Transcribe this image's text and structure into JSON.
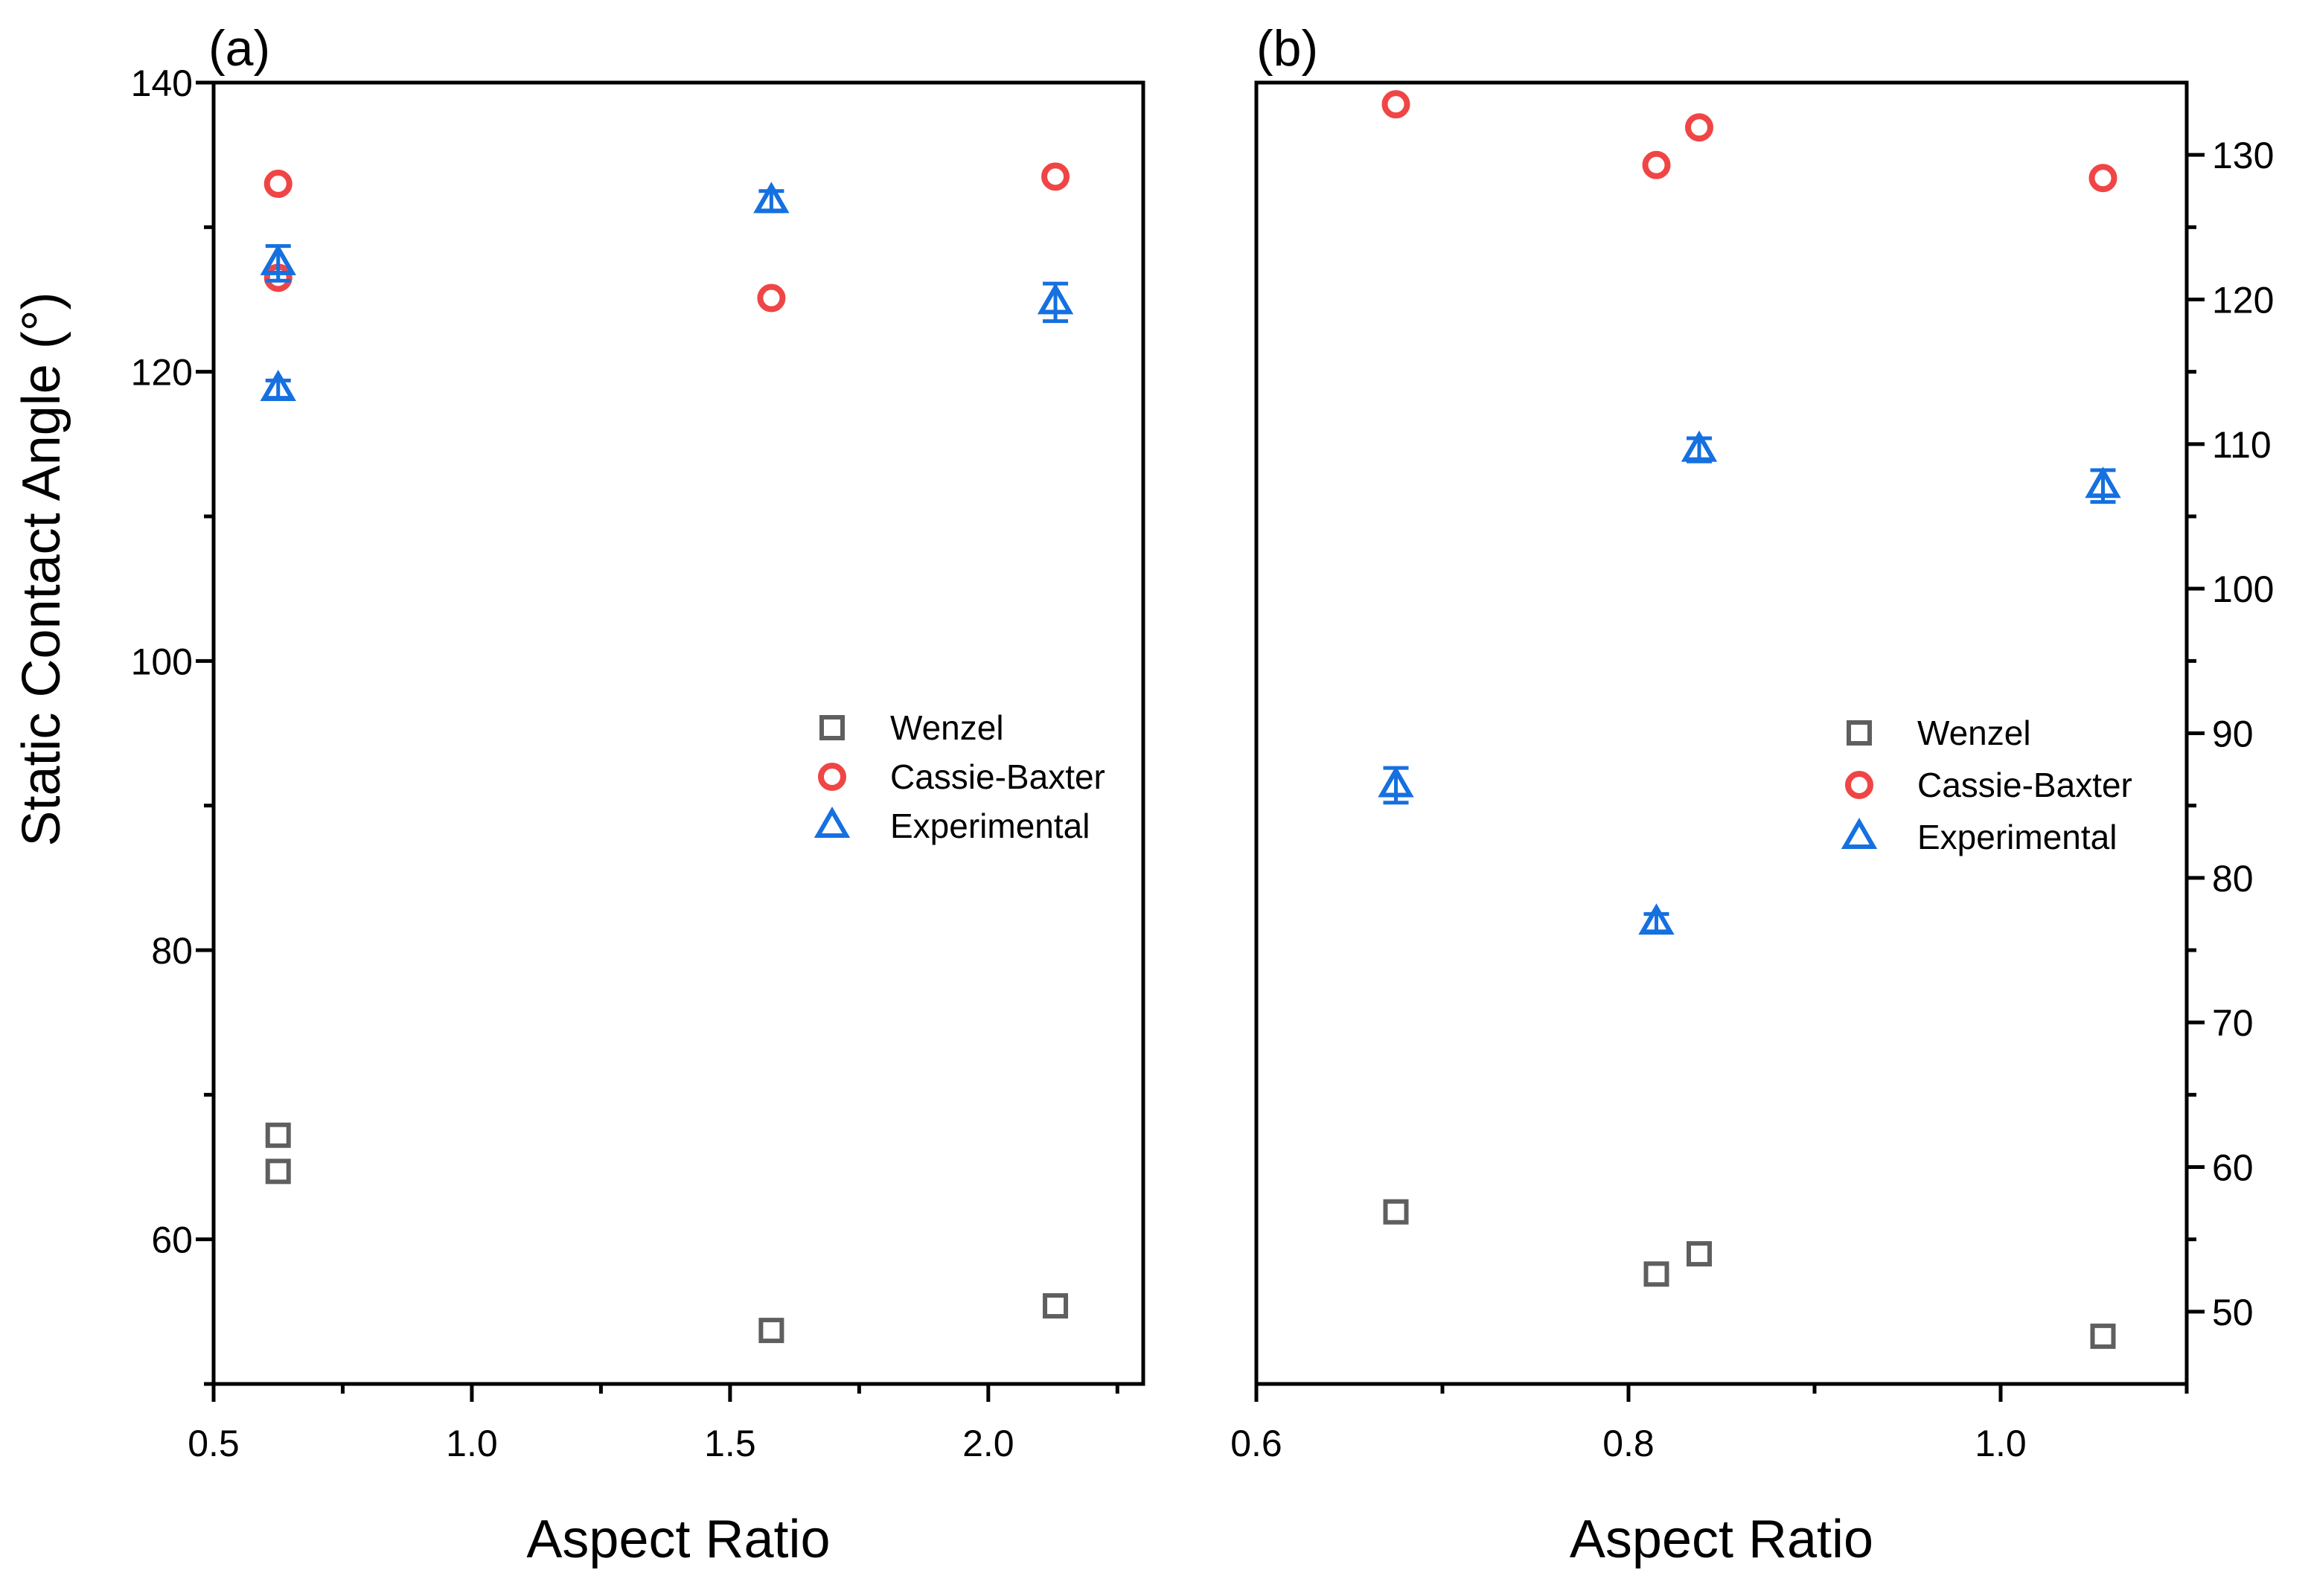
{
  "figure": {
    "ylabel": "Static Contact Angle (°)"
  },
  "colors": {
    "axis": "#000000",
    "wenzel": "#5f5f5f",
    "cassie": "#f04545",
    "experimental": "#1570e0"
  },
  "chart_data": [
    {
      "type": "scatter",
      "panel_label": "(a)",
      "xlabel": "Aspect Ratio",
      "ylabel": "Static Contact Angle (°)",
      "xlim": [
        0.5,
        2.3
      ],
      "ylim": [
        50,
        140
      ],
      "x_ticks": [
        0.5,
        1.0,
        1.5,
        2.0
      ],
      "x_tick_labels": [
        "0.5",
        "1.0",
        "1.5",
        "2.0"
      ],
      "y_ticks": [
        60,
        80,
        100,
        120,
        140
      ],
      "y_tick_labels": [
        "60",
        "80",
        "100",
        "120",
        "140"
      ],
      "legend": [
        "Wenzel",
        "Cassie-Baxter",
        "Experimental"
      ],
      "series": [
        {
          "name": "Wenzel",
          "marker": "square",
          "points": [
            [
              0.625,
              67.2
            ],
            [
              0.625,
              64.7
            ],
            [
              1.58,
              53.7
            ],
            [
              2.13,
              55.4
            ]
          ]
        },
        {
          "name": "Cassie-Baxter",
          "marker": "circle",
          "points": [
            [
              0.625,
              133.0
            ],
            [
              0.625,
              126.5
            ],
            [
              1.58,
              125.1
            ],
            [
              2.13,
              133.5
            ]
          ]
        },
        {
          "name": "Experimental",
          "marker": "triangle",
          "points": [
            [
              0.625,
              127.5,
              1.2
            ],
            [
              0.625,
              118.8,
              0.6
            ],
            [
              1.58,
              131.8,
              0.7
            ],
            [
              2.13,
              124.8,
              1.3
            ]
          ]
        }
      ]
    },
    {
      "type": "scatter",
      "panel_label": "(b)",
      "xlabel": "Aspect Ratio",
      "ylabel": "",
      "xlim": [
        0.6,
        1.1
      ],
      "ylim": [
        45,
        135
      ],
      "x_ticks": [
        0.6,
        0.8,
        1.0
      ],
      "x_tick_labels": [
        "0.6",
        "0.8",
        "1.0"
      ],
      "y_ticks": [
        50,
        60,
        70,
        80,
        90,
        100,
        110,
        120,
        130
      ],
      "y_tick_labels": [
        "50",
        "60",
        "70",
        "80",
        "90",
        "100",
        "110",
        "120",
        "130"
      ],
      "legend": [
        "Wenzel",
        "Cassie-Baxter",
        "Experimental"
      ],
      "series": [
        {
          "name": "Wenzel",
          "marker": "square",
          "points": [
            [
              0.675,
              56.9
            ],
            [
              0.815,
              52.6
            ],
            [
              0.838,
              54.0
            ],
            [
              1.055,
              48.3
            ]
          ]
        },
        {
          "name": "Cassie-Baxter",
          "marker": "circle",
          "points": [
            [
              0.675,
              133.5
            ],
            [
              0.815,
              129.3
            ],
            [
              0.838,
              131.9
            ],
            [
              1.055,
              128.4
            ]
          ]
        },
        {
          "name": "Experimental",
          "marker": "triangle",
          "points": [
            [
              0.675,
              86.4,
              1.2
            ],
            [
              0.815,
              76.9,
              0.6
            ],
            [
              0.838,
              109.6,
              0.8
            ],
            [
              1.055,
              107.1,
              1.1
            ]
          ]
        }
      ]
    }
  ]
}
